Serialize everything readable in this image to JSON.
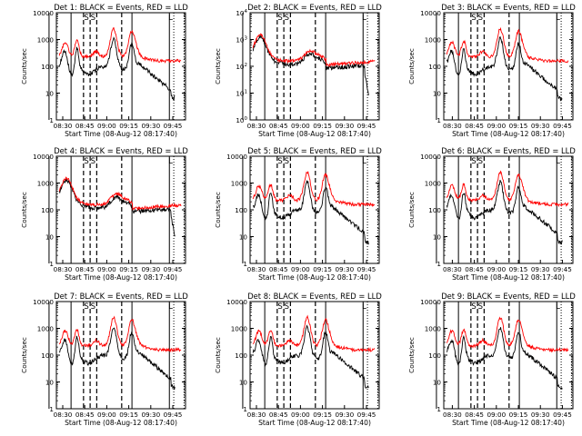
{
  "chart_data": {
    "type": "line",
    "grid": false,
    "y_scale": "log",
    "colors": {
      "events": "#000000",
      "lld": "#ff0000"
    },
    "x_ticks": [
      "08:30",
      "08:45",
      "09:00",
      "09:15",
      "09:30",
      "09:45"
    ],
    "xlabel": "Start Time (08-Aug-12 08:17:40)",
    "ylabel": "Counts/sec",
    "ylim": [
      1,
      10000
    ],
    "y_ticks": [
      "1",
      "10",
      "100",
      "1000",
      "10000"
    ],
    "y_ticks_alt": [
      "10^0",
      "10^1",
      "10^2",
      "10^3",
      "10^4"
    ],
    "panels": [
      {
        "title": "Det 1: BLACK = Events, RED = LLD",
        "seed": 1,
        "shift": 0,
        "tick_style": "plain",
        "markers": [
          "S",
          "S",
          "L"
        ]
      },
      {
        "title": "Det 2: BLACK = Events, RED = LLD",
        "seed": 2,
        "shift": 0,
        "tick_style": "power",
        "markers": [
          "S",
          "S",
          "L"
        ],
        "flat": true
      },
      {
        "title": "Det 3: BLACK = Events, RED = LLD",
        "seed": 3,
        "shift": 1.5,
        "tick_style": "plain",
        "markers": [
          "S",
          "S",
          "L"
        ]
      },
      {
        "title": "Det 4: BLACK = Events, RED = LLD",
        "seed": 4,
        "shift": 0,
        "tick_style": "plain",
        "markers": [
          "S",
          "S",
          "L"
        ],
        "flat": true
      },
      {
        "title": "Det 5: BLACK = Events, RED = LLD",
        "seed": 5,
        "shift": 0,
        "tick_style": "plain",
        "markers": [
          "S",
          "S",
          "L"
        ]
      },
      {
        "title": "Det 6: BLACK = Events, RED = LLD",
        "seed": 6,
        "shift": 1.5,
        "tick_style": "plain",
        "markers": [
          "S",
          "S",
          "L"
        ]
      },
      {
        "title": "Det 7: BLACK = Events, RED = LLD",
        "seed": 7,
        "shift": 0,
        "tick_style": "plain",
        "markers": [
          "S",
          "S",
          "L"
        ]
      },
      {
        "title": "Det 8: BLACK = Events, RED = LLD",
        "seed": 8,
        "shift": 0,
        "tick_style": "plain",
        "markers": [
          "S",
          "S",
          "L"
        ]
      },
      {
        "title": "Det 9: BLACK = Events, RED = LLD",
        "seed": 9,
        "shift": 1.5,
        "tick_style": "plain",
        "markers": [
          "S",
          "S",
          "L"
        ]
      }
    ]
  }
}
